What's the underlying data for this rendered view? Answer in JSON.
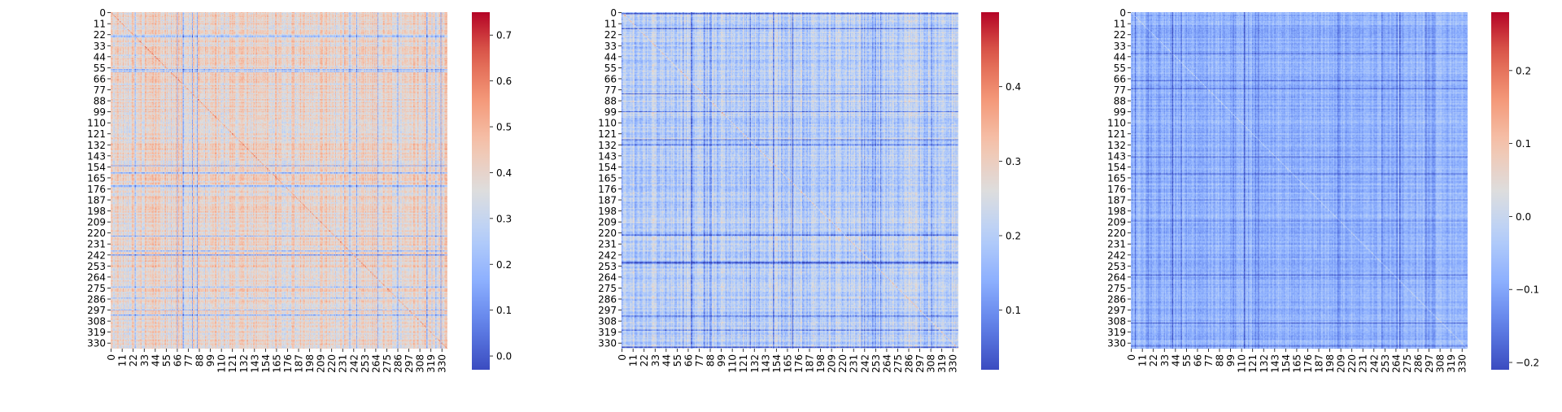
{
  "chart_data": [
    {
      "type": "heatmap",
      "title": "",
      "xlabel": "",
      "ylabel": "",
      "matrix_size": 336,
      "x_tick_labels": [
        "0",
        "11",
        "22",
        "33",
        "44",
        "55",
        "66",
        "77",
        "88",
        "99",
        "110",
        "121",
        "132",
        "143",
        "154",
        "165",
        "176",
        "187",
        "198",
        "209",
        "220",
        "231",
        "242",
        "253",
        "264",
        "275",
        "286",
        "297",
        "308",
        "319",
        "330"
      ],
      "y_tick_labels": [
        "0",
        "11",
        "22",
        "33",
        "44",
        "55",
        "66",
        "77",
        "88",
        "99",
        "110",
        "121",
        "132",
        "143",
        "154",
        "165",
        "176",
        "187",
        "198",
        "209",
        "220",
        "231",
        "242",
        "253",
        "264",
        "275",
        "286",
        "297",
        "308",
        "319",
        "330"
      ],
      "colormap": "coolwarm",
      "vmin": -0.03,
      "vmax": 0.75,
      "colorbar_ticks": [
        "0.0",
        "0.1",
        "0.2",
        "0.3",
        "0.4",
        "0.5",
        "0.6",
        "0.7"
      ],
      "typical_value": 0.4,
      "value_spread": 0.09
    },
    {
      "type": "heatmap",
      "title": "",
      "xlabel": "",
      "ylabel": "",
      "matrix_size": 336,
      "x_tick_labels": [
        "0",
        "11",
        "22",
        "33",
        "44",
        "55",
        "66",
        "77",
        "88",
        "99",
        "110",
        "121",
        "132",
        "143",
        "154",
        "165",
        "176",
        "187",
        "198",
        "209",
        "220",
        "231",
        "242",
        "253",
        "264",
        "275",
        "286",
        "297",
        "308",
        "319",
        "330"
      ],
      "y_tick_labels": [
        "0",
        "11",
        "22",
        "33",
        "44",
        "55",
        "66",
        "77",
        "88",
        "99",
        "110",
        "121",
        "132",
        "143",
        "154",
        "165",
        "176",
        "187",
        "198",
        "209",
        "220",
        "231",
        "242",
        "253",
        "264",
        "275",
        "286",
        "297",
        "308",
        "319",
        "330"
      ],
      "colormap": "coolwarm",
      "vmin": 0.02,
      "vmax": 0.5,
      "colorbar_ticks": [
        "0.1",
        "0.2",
        "0.3",
        "0.4"
      ],
      "typical_value": 0.2,
      "value_spread": 0.06
    },
    {
      "type": "heatmap",
      "title": "",
      "xlabel": "",
      "ylabel": "",
      "matrix_size": 336,
      "x_tick_labels": [
        "0",
        "11",
        "22",
        "33",
        "44",
        "55",
        "66",
        "77",
        "88",
        "99",
        "110",
        "121",
        "132",
        "143",
        "154",
        "165",
        "176",
        "187",
        "198",
        "209",
        "220",
        "231",
        "242",
        "253",
        "264",
        "275",
        "286",
        "297",
        "308",
        "319",
        "330"
      ],
      "y_tick_labels": [
        "0",
        "11",
        "22",
        "33",
        "44",
        "55",
        "66",
        "77",
        "88",
        "99",
        "110",
        "121",
        "132",
        "143",
        "154",
        "165",
        "176",
        "187",
        "198",
        "209",
        "220",
        "231",
        "242",
        "253",
        "264",
        "275",
        "286",
        "297",
        "308",
        "319",
        "330"
      ],
      "colormap": "coolwarm",
      "vmin": -0.21,
      "vmax": 0.28,
      "colorbar_ticks": [
        "−0.2",
        "−0.1",
        "0.0",
        "0.1",
        "0.2"
      ],
      "typical_value": -0.08,
      "value_spread": 0.04
    }
  ]
}
